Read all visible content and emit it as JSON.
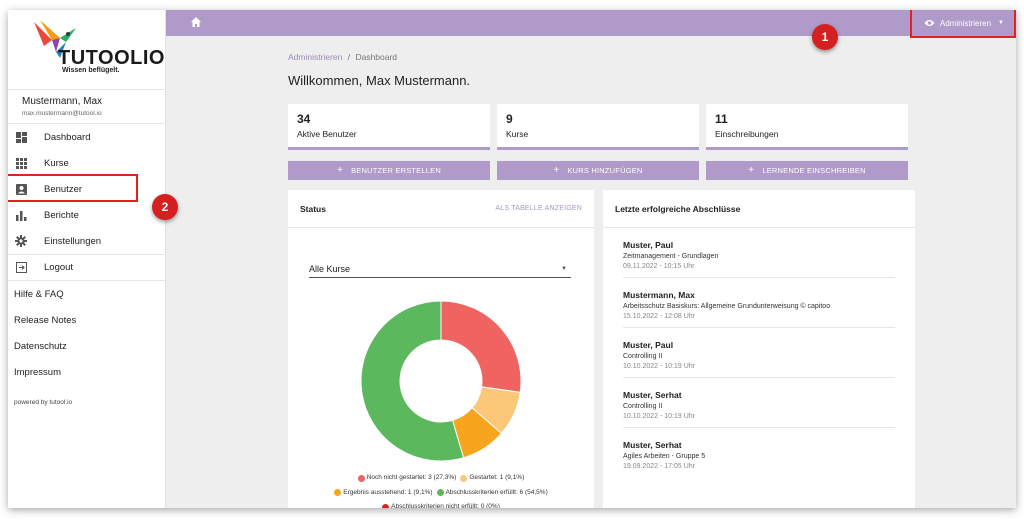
{
  "brand": {
    "name": "TUTOOLIO",
    "tagline": "Wissen beflügelt."
  },
  "user": {
    "name": "Mustermann, Max",
    "email": "max.mustermann@tutool.io"
  },
  "sidebar": {
    "items": [
      {
        "label": "Dashboard",
        "icon": "dashboard-icon"
      },
      {
        "label": "Kurse",
        "icon": "grid-icon"
      },
      {
        "label": "Benutzer",
        "icon": "account-box-icon"
      },
      {
        "label": "Berichte",
        "icon": "bar-chart-icon"
      },
      {
        "label": "Einstellungen",
        "icon": "gear-icon"
      },
      {
        "label": "Logout",
        "icon": "logout-icon"
      }
    ],
    "links": [
      "Hilfe & FAQ",
      "Release Notes",
      "Datenschutz",
      "Impressum"
    ],
    "powered": "powered by tutool.io"
  },
  "topbar": {
    "admin_label": "Administrieren"
  },
  "annotations": {
    "badge1": "1",
    "badge2": "2"
  },
  "breadcrumb": {
    "root": "Administrieren",
    "sep": "/",
    "current": "Dashboard"
  },
  "welcome": "Willkommen, Max Mustermann.",
  "stats": [
    {
      "value": "34",
      "label": "Aktive Benutzer"
    },
    {
      "value": "9",
      "label": "Kurse"
    },
    {
      "value": "11",
      "label": "Einschreibungen"
    }
  ],
  "actions": [
    "BENUTZER ERSTELLEN",
    "KURS HINZUFÜGEN",
    "LERNENDE EINSCHREIBEN"
  ],
  "status_card": {
    "title": "Status",
    "link": "ALS TABELLE ANZEIGEN",
    "select_value": "Alle Kurse"
  },
  "chart_data": {
    "type": "pie",
    "categories": [
      "Noch nicht gestartet",
      "Gestartet",
      "Ergebnis ausstehend",
      "Abschlusskriterien erfüllt",
      "Abschlusskriterien nicht erfüllt"
    ],
    "values": [
      3,
      1,
      1,
      6,
      0
    ],
    "colors": [
      "#ef6461",
      "#fbc87a",
      "#f7a51c",
      "#5cb85c",
      "#e02020"
    ],
    "legend": [
      "Noch nicht gestartet: 3 (27,3%)",
      "Gestartet: 1 (9,1%)",
      "Ergebnis ausstehend: 1 (9,1%)",
      "Abschlusskriterien erfüllt: 6 (54,5%)",
      "Abschlusskriterien nicht erfüllt: 0 (0%)"
    ]
  },
  "completions": {
    "title": "Letzte erfolgreiche Abschlüsse",
    "items": [
      {
        "name": "Muster, Paul",
        "course": "Zeitmanagement - Grundlagen",
        "date": "09.11.2022 - 10:15 Uhr"
      },
      {
        "name": "Mustermann, Max",
        "course": "Arbeitsschutz Basiskurs: Allgemeine Grundunterweisung © capitoo",
        "date": "15.10.2022 - 12:08 Uhr"
      },
      {
        "name": "Muster, Paul",
        "course": "Controlling II",
        "date": "10.10.2022 - 10:19 Uhr"
      },
      {
        "name": "Muster, Serhat",
        "course": "Controlling II",
        "date": "10.10.2022 - 10:19 Uhr"
      },
      {
        "name": "Muster, Serhat",
        "course": "Agiles Arbeiten - Gruppe 5",
        "date": "19.09.2022 - 17:05 Uhr"
      }
    ]
  }
}
